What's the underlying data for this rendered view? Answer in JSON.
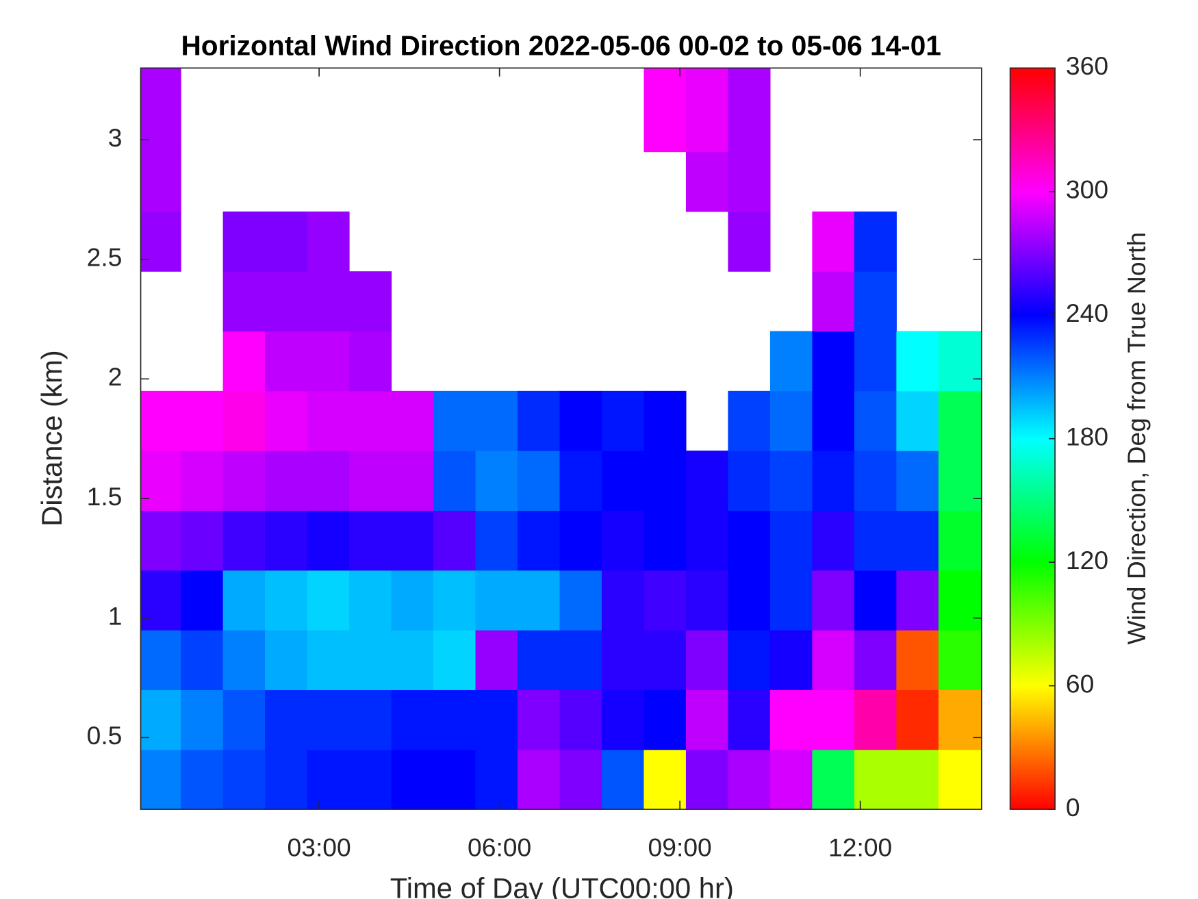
{
  "chart_data": {
    "type": "heatmap",
    "title": "Horizontal Wind Direction 2022-05-06 00-02 to 05-06 14-01",
    "x_label": "Time of Day (UTC00:00 hr)",
    "y_label": "Distance (km)",
    "colorbar_label": "Wind Direction, Deg from True North",
    "colormap": "hsv",
    "xlim": [
      0.033,
      14.017
    ],
    "xticks": [
      {
        "value": 3,
        "label": "03:00"
      },
      {
        "value": 6,
        "label": "06:00"
      },
      {
        "value": 9,
        "label": "09:00"
      },
      {
        "value": 12,
        "label": "12:00"
      }
    ],
    "ylim": [
      0.2,
      3.3
    ],
    "yticks": [
      0.5,
      1,
      1.5,
      2,
      2.5,
      3
    ],
    "clim": [
      0,
      360
    ],
    "cticks": [
      0,
      60,
      120,
      180,
      240,
      300,
      360
    ],
    "x_bins": [
      0.033,
      0.7,
      1.4,
      2.1,
      2.8,
      3.5,
      4.2,
      4.9,
      5.6,
      6.3,
      7.0,
      7.7,
      8.4,
      9.1,
      9.8,
      10.5,
      11.2,
      11.9,
      12.6,
      13.3,
      14.017
    ],
    "y_bins": [
      0.2,
      0.45,
      0.7,
      0.95,
      1.2,
      1.45,
      1.7,
      1.95,
      2.2,
      2.45,
      2.7,
      2.95,
      3.3
    ],
    "values": [
      [
        210,
        220,
        225,
        230,
        235,
        235,
        240,
        240,
        235,
        280,
        270,
        220,
        60,
        270,
        280,
        290,
        140,
        80,
        80,
        60
      ],
      [
        200,
        210,
        220,
        230,
        230,
        230,
        235,
        235,
        235,
        270,
        260,
        245,
        240,
        285,
        250,
        300,
        300,
        320,
        10,
        40
      ],
      [
        215,
        225,
        210,
        200,
        195,
        195,
        195,
        190,
        275,
        230,
        230,
        250,
        250,
        270,
        235,
        245,
        290,
        270,
        20,
        110
      ],
      [
        250,
        240,
        200,
        195,
        190,
        195,
        200,
        195,
        200,
        200,
        215,
        250,
        255,
        250,
        240,
        230,
        270,
        240,
        270,
        120
      ],
      [
        270,
        265,
        255,
        250,
        245,
        250,
        250,
        260,
        225,
        235,
        240,
        245,
        240,
        245,
        240,
        230,
        250,
        230,
        230,
        130
      ],
      [
        295,
        290,
        285,
        280,
        280,
        285,
        285,
        220,
        210,
        215,
        235,
        240,
        240,
        245,
        230,
        225,
        235,
        225,
        215,
        140
      ],
      [
        300,
        300,
        305,
        295,
        290,
        290,
        290,
        215,
        215,
        230,
        240,
        235,
        240,
        null,
        225,
        215,
        240,
        220,
        190,
        140
      ],
      [
        null,
        null,
        300,
        285,
        285,
        280,
        null,
        null,
        null,
        null,
        null,
        null,
        null,
        null,
        null,
        210,
        240,
        225,
        180,
        170
      ],
      [
        null,
        null,
        275,
        275,
        275,
        275,
        null,
        null,
        null,
        null,
        null,
        null,
        null,
        null,
        null,
        null,
        285,
        225,
        null,
        null
      ],
      [
        275,
        null,
        270,
        270,
        275,
        null,
        null,
        null,
        null,
        null,
        null,
        null,
        null,
        null,
        275,
        null,
        295,
        230,
        null,
        null
      ],
      [
        280,
        null,
        null,
        null,
        null,
        null,
        null,
        null,
        null,
        null,
        null,
        null,
        null,
        285,
        280,
        null,
        null,
        null,
        null,
        null
      ],
      [
        280,
        null,
        null,
        null,
        null,
        null,
        null,
        null,
        null,
        null,
        null,
        null,
        300,
        295,
        280,
        null,
        null,
        null,
        null,
        null
      ]
    ]
  }
}
